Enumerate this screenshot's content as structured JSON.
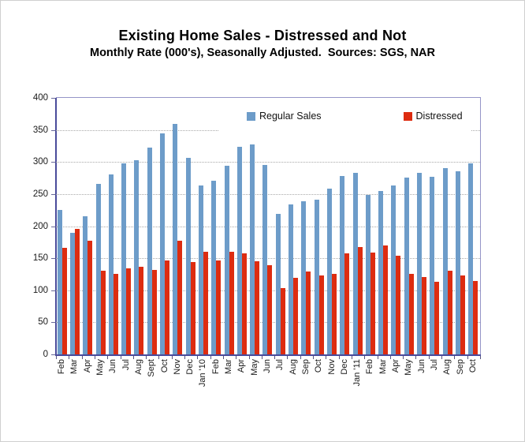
{
  "page": {
    "title": "Existing Home Sales - Distressed and Not",
    "subtitle": "Monthly Rate (000's), Seasonally Adjusted.  Sources: SGS, NAR"
  },
  "legend": {
    "items": [
      {
        "label": "Regular Sales",
        "color": "#6D9CC9"
      },
      {
        "label": "Distressed",
        "color": "#DD2C10"
      }
    ]
  },
  "axes": {
    "y_tick_labels": [
      "0",
      "50",
      "100",
      "150",
      "200",
      "250",
      "300",
      "350",
      "400"
    ]
  },
  "chart_data": {
    "type": "bar",
    "title": "Existing Home Sales - Distressed and Not",
    "subtitle": "Monthly Rate (000's), Seasonally Adjusted.  Sources: SGS, NAR",
    "xlabel": "",
    "ylabel": "",
    "ylim": [
      0,
      400
    ],
    "ytick_step": 50,
    "grid": "horizontal",
    "legend_position": "top-inside",
    "categories": [
      "Feb",
      "Mar",
      "Apr",
      "May",
      "Jun",
      "Jul",
      "Aug",
      "Sept",
      "Oct",
      "Nov",
      "Dec",
      "Jan '10",
      "Feb",
      "Mar",
      "Apr",
      "May",
      "Jun",
      "Jul",
      "Aug",
      "Sep",
      "Oct",
      "Nov",
      "Dec",
      "Jan '11",
      "Feb",
      "Mar",
      "Apr",
      "May",
      "Jun",
      "Jul",
      "Aug",
      "Sep",
      "Oct"
    ],
    "series": [
      {
        "name": "Regular Sales",
        "color": "#6D9CC9",
        "values": [
          225,
          190,
          215,
          266,
          281,
          298,
          303,
          323,
          345,
          359,
          307,
          263,
          271,
          294,
          324,
          327,
          296,
          219,
          234,
          239,
          241,
          258,
          278,
          283,
          249,
          255,
          263,
          276,
          283,
          277,
          291,
          285,
          298
        ]
      },
      {
        "name": "Distressed",
        "color": "#DD2C10",
        "values": [
          166,
          196,
          177,
          130,
          125,
          134,
          137,
          132,
          147,
          177,
          144,
          160,
          146,
          160,
          158,
          145,
          139,
          103,
          119,
          129,
          123,
          126,
          157,
          167,
          159,
          170,
          154,
          125,
          121,
          113,
          131,
          123,
          115
        ]
      }
    ]
  }
}
